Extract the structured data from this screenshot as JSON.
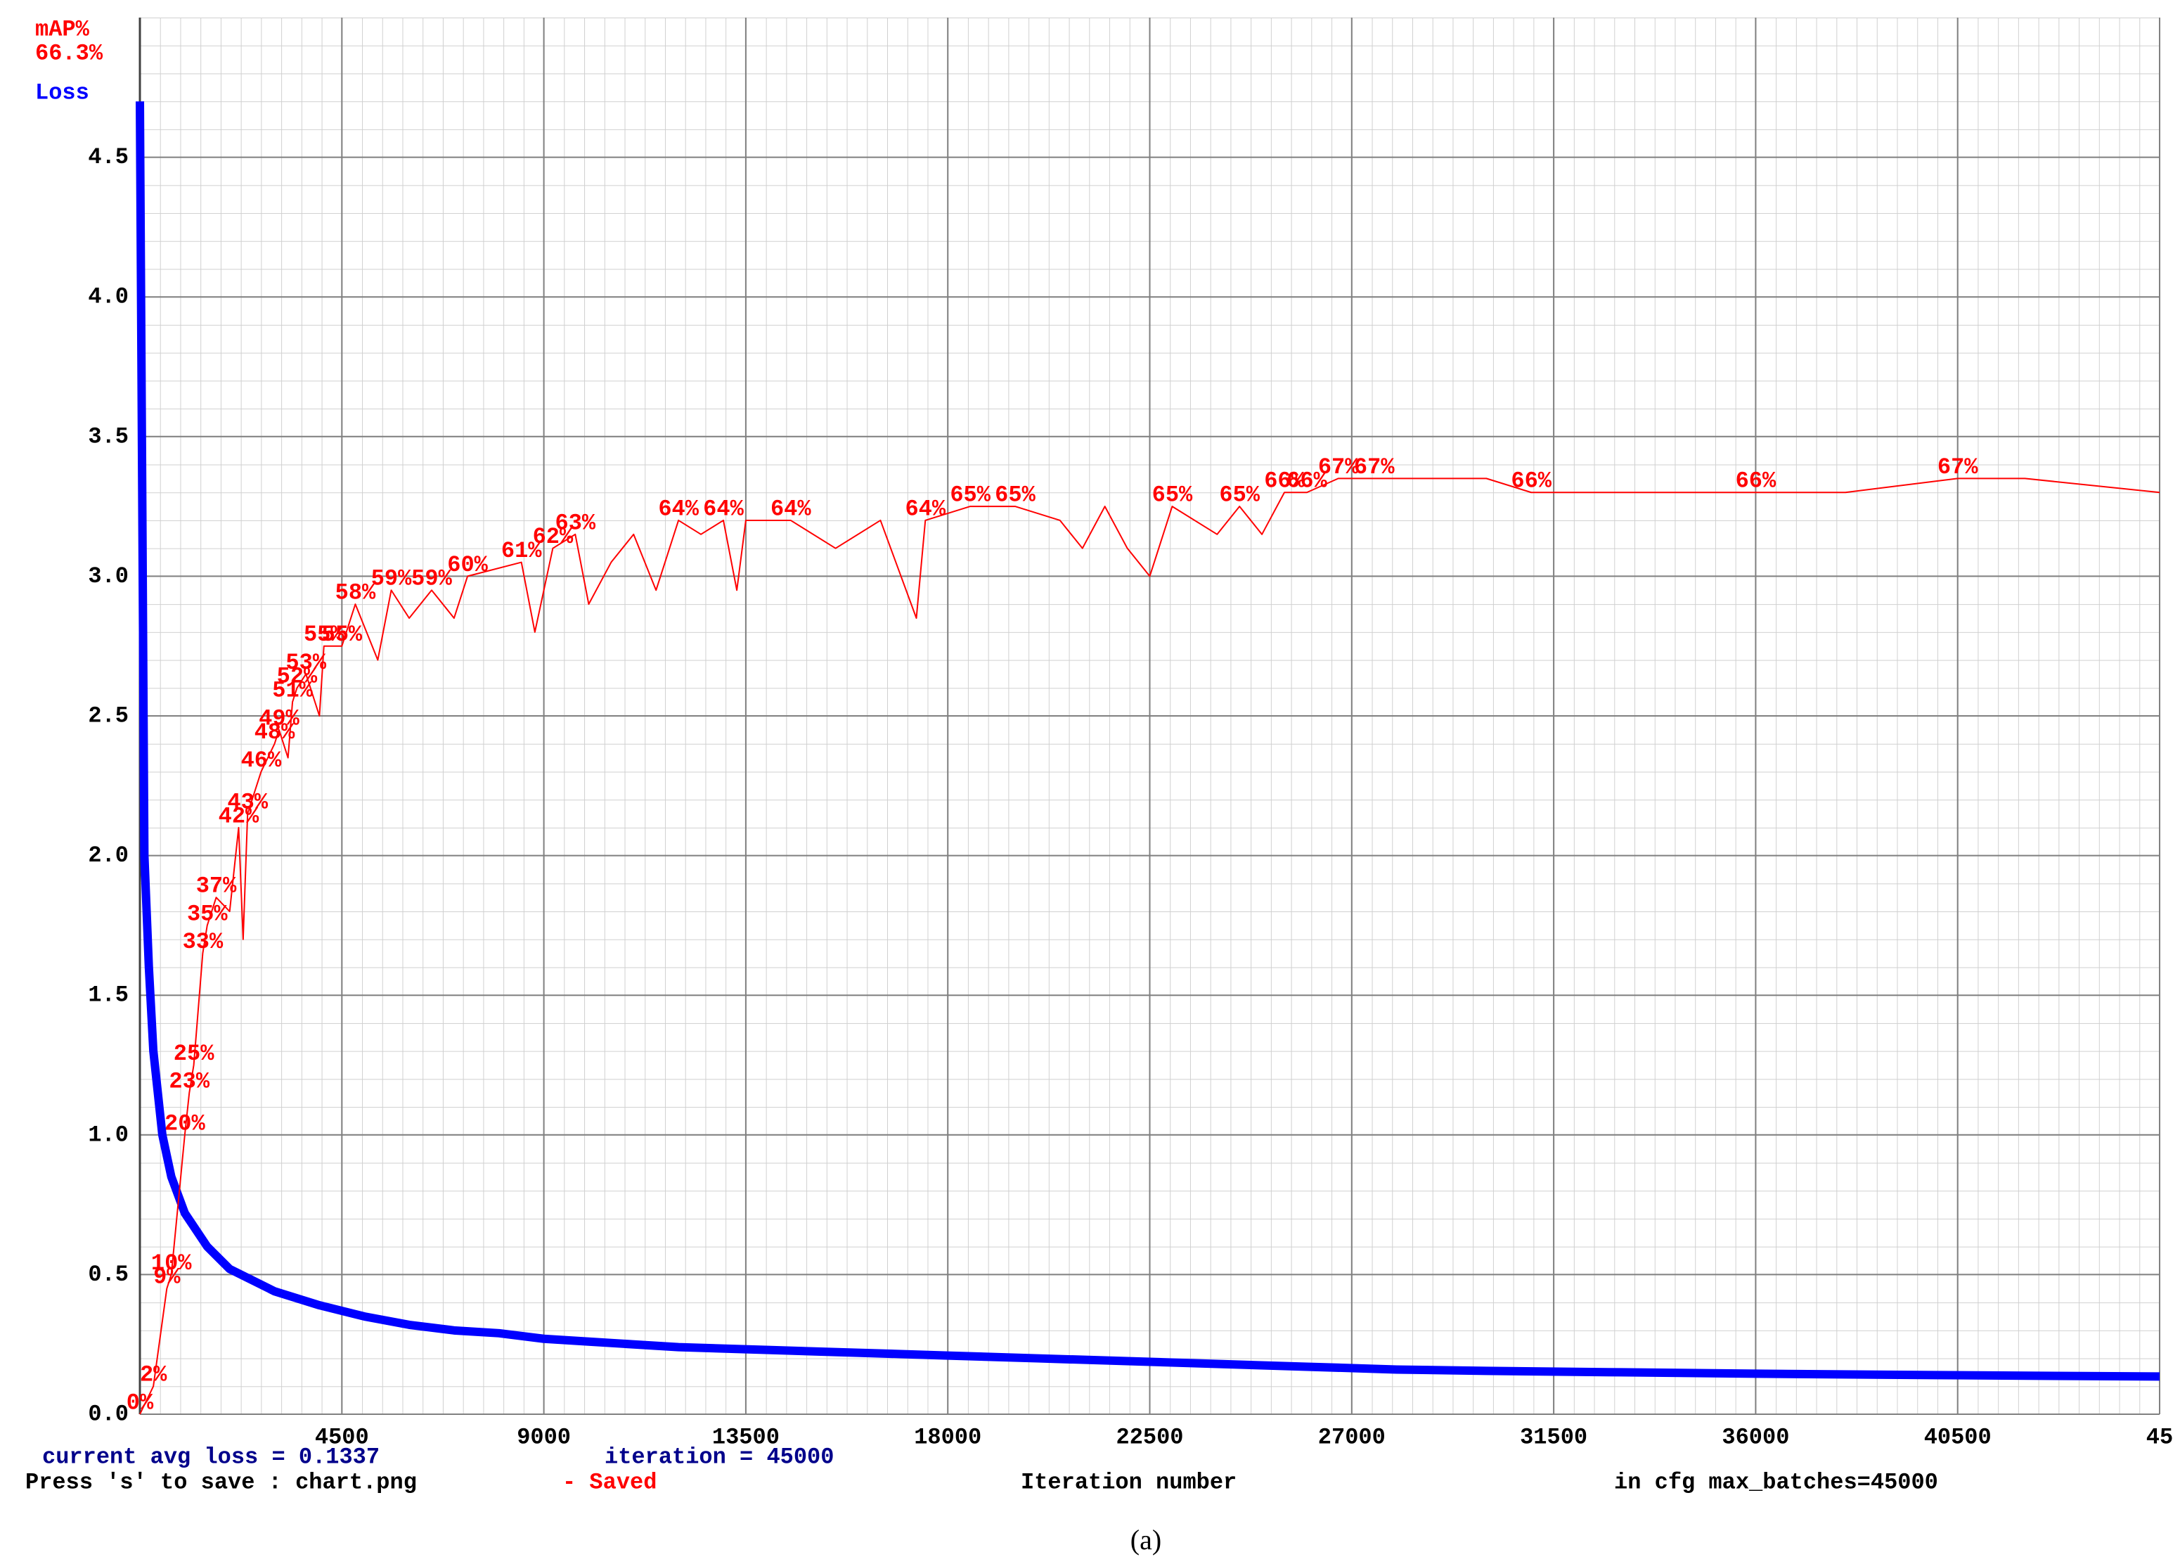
{
  "chart_data": {
    "type": "line",
    "current_map": "66.3%",
    "xlabel": "Iteration number",
    "status": [
      "current avg loss = 0.1337",
      "iteration = 45000"
    ],
    "save_hint": "Press 's' to save : chart.png",
    "save_status": "- Saved",
    "note": "in cfg max_batches=45000",
    "caption": "(a)",
    "xlim": [
      0,
      45000
    ],
    "xticks": [
      4500,
      9000,
      13500,
      18000,
      22500,
      27000,
      31500,
      36000,
      40500,
      {
        "value": 45000,
        "label": "45"
      }
    ],
    "ylim": [
      0,
      5
    ],
    "yticks": [
      {
        "value": 0,
        "label": "0.0"
      },
      0.5,
      {
        "value": 1,
        "label": "1.0"
      },
      1.5,
      {
        "value": 2,
        "label": "2.0"
      },
      2.5,
      {
        "value": 3,
        "label": "3.0"
      },
      3.5,
      {
        "value": 4,
        "label": "4.0"
      },
      4.5
    ],
    "y2lim": [
      0,
      100
    ],
    "grid": true,
    "series": [
      {
        "name": "Loss",
        "color": "#0000ff",
        "x": [
          0,
          100,
          200,
          300,
          500,
          700,
          1000,
          1500,
          2000,
          3000,
          4000,
          5000,
          6000,
          7000,
          8000,
          9000,
          10000,
          12000,
          14000,
          16000,
          18000,
          20000,
          22000,
          24000,
          26000,
          28000,
          30000,
          33000,
          36000,
          40000,
          45000
        ],
        "values": [
          4.7,
          2.0,
          1.6,
          1.3,
          1.0,
          0.85,
          0.72,
          0.6,
          0.52,
          0.44,
          0.39,
          0.35,
          0.32,
          0.3,
          0.29,
          0.27,
          0.26,
          0.24,
          0.23,
          0.22,
          0.21,
          0.2,
          0.19,
          0.18,
          0.17,
          0.16,
          0.155,
          0.15,
          0.145,
          0.14,
          0.135
        ]
      },
      {
        "name": "mAP%",
        "color": "#ff0000",
        "axis": "y2",
        "x": [
          0,
          300,
          600,
          700,
          1000,
          1100,
          1200,
          1400,
          1500,
          1700,
          2000,
          2200,
          2300,
          2400,
          2700,
          3000,
          3100,
          3300,
          3400,
          3500,
          3700,
          4000,
          4100,
          4500,
          4800,
          5300,
          5600,
          6000,
          6500,
          7000,
          7300,
          8500,
          8800,
          9200,
          9700,
          10000,
          10500,
          11000,
          11500,
          12000,
          12500,
          13000,
          13300,
          13500,
          14500,
          15500,
          16500,
          17300,
          17500,
          18500,
          19500,
          20500,
          21000,
          21500,
          22000,
          22500,
          23000,
          24000,
          24500,
          25000,
          25500,
          26000,
          26700,
          27500,
          28000,
          30000,
          31000,
          32000,
          34000,
          36000,
          38000,
          40500,
          42000,
          45000
        ],
        "values": [
          0,
          2,
          9,
          10,
          20,
          23,
          25,
          33,
          35,
          37,
          36,
          42,
          34,
          43,
          46,
          48,
          49,
          47,
          51,
          52,
          53,
          50,
          55,
          55,
          58,
          54,
          59,
          57,
          59,
          57,
          60,
          61,
          56,
          62,
          63,
          58,
          61,
          63,
          59,
          64,
          63,
          64,
          59,
          64,
          64,
          62,
          64,
          57,
          64,
          65,
          65,
          64,
          62,
          65,
          62,
          60,
          65,
          63,
          65,
          63,
          66,
          66,
          67,
          67,
          67,
          67,
          66,
          66,
          66,
          66,
          66,
          67,
          67,
          66
        ],
        "value_labels": [
          "0%",
          "2%",
          "9%",
          "10%",
          "20%",
          "23%",
          "25%",
          "33%",
          "35%",
          "37%",
          null,
          "42%",
          null,
          "43%",
          "46%",
          "48%",
          "49%",
          null,
          "51%",
          "52%",
          "53%",
          null,
          "55%",
          "55%",
          "58%",
          null,
          "59%",
          null,
          "59%",
          null,
          "60%",
          "61%",
          null,
          "62%",
          "63%",
          null,
          null,
          null,
          null,
          "64%",
          null,
          "64%",
          null,
          null,
          "64%",
          null,
          null,
          null,
          "64%",
          "65%",
          "65%",
          null,
          null,
          null,
          null,
          null,
          "65%",
          null,
          "65%",
          null,
          "66%",
          "66%",
          "67%",
          "67%",
          null,
          null,
          "66%",
          null,
          null,
          "66%",
          null,
          "67%",
          null,
          null
        ]
      }
    ]
  }
}
